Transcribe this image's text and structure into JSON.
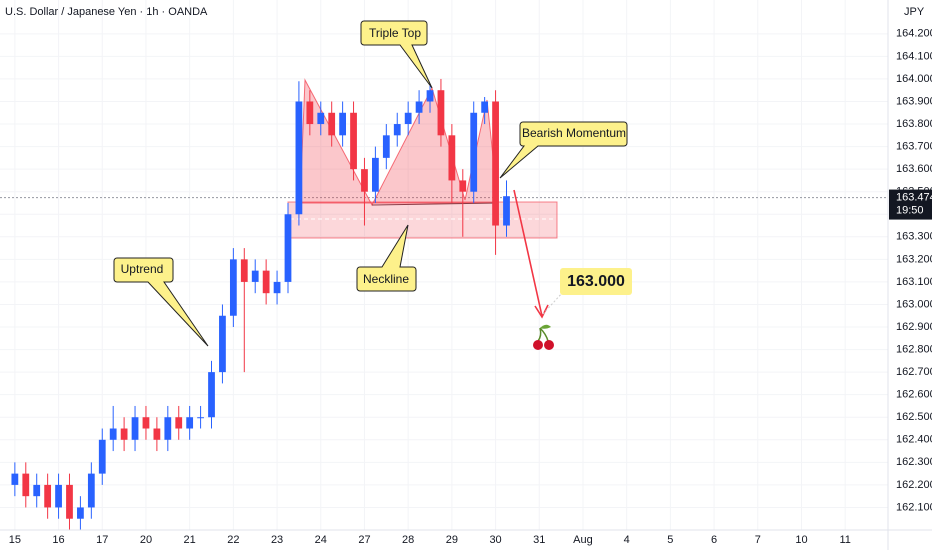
{
  "chart_data": {
    "type": "candlestick",
    "title": "U.S. Dollar / Japanese Yen · 1h · OANDA",
    "axis_unit": "JPY",
    "x": [
      0,
      0.25,
      0.5,
      0.75,
      1,
      1.25,
      1.5,
      1.75,
      2,
      2.25,
      2.5,
      2.75,
      3,
      3.25,
      3.5,
      3.75,
      4,
      4.25,
      4.5,
      4.75,
      5,
      5.25,
      5.5,
      5.75,
      6,
      6.25,
      6.5,
      6.75,
      7,
      7.25,
      7.5,
      7.75,
      8,
      8.25,
      8.5,
      8.75,
      9,
      9.25,
      9.5,
      9.75,
      10,
      10.25,
      10.5,
      10.75,
      11,
      11.25
    ],
    "open": [
      162.2,
      162.25,
      162.15,
      162.2,
      162.1,
      162.2,
      162.05,
      162.1,
      162.25,
      162.4,
      162.45,
      162.4,
      162.5,
      162.45,
      162.4,
      162.5,
      162.45,
      162.5,
      162.5,
      162.7,
      162.95,
      163.2,
      163.1,
      163.15,
      163.05,
      163.1,
      163.4,
      163.9,
      163.8,
      163.85,
      163.75,
      163.85,
      163.6,
      163.5,
      163.65,
      163.75,
      163.8,
      163.85,
      163.9,
      163.95,
      163.75,
      163.55,
      163.5,
      163.85,
      163.9,
      163.35
    ],
    "high": [
      162.3,
      162.3,
      162.25,
      162.25,
      162.25,
      162.25,
      162.15,
      162.3,
      162.45,
      162.55,
      162.5,
      162.55,
      162.55,
      162.5,
      162.55,
      162.55,
      162.55,
      162.55,
      162.75,
      163.0,
      163.25,
      163.25,
      163.2,
      163.2,
      163.15,
      163.45,
      163.99,
      163.95,
      163.9,
      163.9,
      163.9,
      163.9,
      163.65,
      163.7,
      163.8,
      163.85,
      163.9,
      163.95,
      163.97,
      164.0,
      163.8,
      163.6,
      163.9,
      163.92,
      163.95,
      163.55
    ],
    "low": [
      162.15,
      162.1,
      162.1,
      162.05,
      162.05,
      162.0,
      162.0,
      162.05,
      162.2,
      162.35,
      162.35,
      162.35,
      162.4,
      162.35,
      162.35,
      162.4,
      162.4,
      162.45,
      162.45,
      162.65,
      162.9,
      162.7,
      163.05,
      163.0,
      163.0,
      163.05,
      163.35,
      163.75,
      163.75,
      163.7,
      163.7,
      163.55,
      163.35,
      163.45,
      163.6,
      163.7,
      163.75,
      163.8,
      163.85,
      163.7,
      163.45,
      163.3,
      163.45,
      163.8,
      163.22,
      163.3
    ],
    "close": [
      162.25,
      162.15,
      162.2,
      162.1,
      162.2,
      162.05,
      162.1,
      162.25,
      162.4,
      162.45,
      162.4,
      162.5,
      162.45,
      162.4,
      162.5,
      162.45,
      162.5,
      162.5,
      162.7,
      162.95,
      163.2,
      163.1,
      163.15,
      163.05,
      163.1,
      163.4,
      163.9,
      163.8,
      163.85,
      163.75,
      163.85,
      163.6,
      163.5,
      163.65,
      163.75,
      163.8,
      163.85,
      163.9,
      163.95,
      163.75,
      163.55,
      163.5,
      163.85,
      163.9,
      163.35,
      163.48
    ],
    "up_color": "#2962ff",
    "down_color": "#f23645",
    "xlim": [
      -0.34,
      19.98
    ],
    "xticks": [
      {
        "value": 0,
        "label": "15"
      },
      {
        "value": 1,
        "label": "16"
      },
      {
        "value": 2,
        "label": "17"
      },
      {
        "value": 3,
        "label": "20"
      },
      {
        "value": 4,
        "label": "21"
      },
      {
        "value": 5,
        "label": "22"
      },
      {
        "value": 6,
        "label": "23"
      },
      {
        "value": 7,
        "label": "24"
      },
      {
        "value": 8,
        "label": "27"
      },
      {
        "value": 9,
        "label": "28"
      },
      {
        "value": 10,
        "label": "29"
      },
      {
        "value": 11,
        "label": "30"
      },
      {
        "value": 12,
        "label": "31"
      },
      {
        "value": 13,
        "label": "Aug"
      },
      {
        "value": 14,
        "label": "4"
      },
      {
        "value": 15,
        "label": "5"
      },
      {
        "value": 16,
        "label": "6"
      },
      {
        "value": 17,
        "label": "7"
      },
      {
        "value": 18,
        "label": "10"
      },
      {
        "value": 19,
        "label": "11"
      }
    ],
    "ylim": [
      162.0,
      164.35
    ],
    "yticks": [
      {
        "value": 162.1,
        "label": "162.100"
      },
      {
        "value": 162.2,
        "label": "162.200"
      },
      {
        "value": 162.3,
        "label": "162.300"
      },
      {
        "value": 162.4,
        "label": "162.400"
      },
      {
        "value": 162.5,
        "label": "162.500"
      },
      {
        "value": 162.6,
        "label": "162.600"
      },
      {
        "value": 162.7,
        "label": "162.700"
      },
      {
        "value": 162.8,
        "label": "162.800"
      },
      {
        "value": 162.9,
        "label": "162.900"
      },
      {
        "value": 163.0,
        "label": "163.000"
      },
      {
        "value": 163.1,
        "label": "163.100"
      },
      {
        "value": 163.2,
        "label": "163.200"
      },
      {
        "value": 163.3,
        "label": "163.300"
      },
      {
        "value": 163.4,
        "label": "163.400"
      },
      {
        "value": 163.5,
        "label": "163.500"
      },
      {
        "value": 163.6,
        "label": "163.600"
      },
      {
        "value": 163.7,
        "label": "163.700"
      },
      {
        "value": 163.8,
        "label": "163.800"
      },
      {
        "value": 163.9,
        "label": "163.900"
      },
      {
        "value": 164.0,
        "label": "164.000"
      },
      {
        "value": 164.1,
        "label": "164.100"
      },
      {
        "value": 164.2,
        "label": "164.200"
      }
    ],
    "current_price": 163.474,
    "countdown": "19:50",
    "annotations": [
      "Triple Top",
      "Bearish Momentum",
      "Uptrend",
      "Neckline",
      "163.000"
    ]
  }
}
